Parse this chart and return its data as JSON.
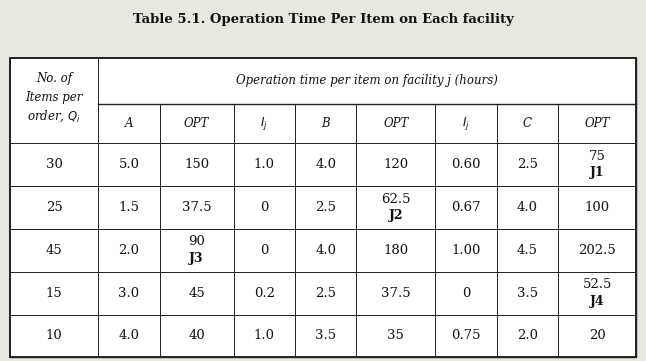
{
  "title": "Table 5.1. Operation Time Per Item on Each facility",
  "col_header_top": "Operation time per item on facility j (hours)",
  "col_header_sub": [
    "A",
    "OPT",
    "I_j",
    "B",
    "OPT",
    "I_j",
    "C",
    "OPT"
  ],
  "rows": [
    {
      "q": "30",
      "vals": [
        "5.0",
        "150",
        "1.0",
        "4.0",
        "120",
        "0.60",
        "2.5",
        "75"
      ],
      "bold_val": "J1",
      "bold_col": 7
    },
    {
      "q": "25",
      "vals": [
        "1.5",
        "37.5",
        "0",
        "2.5",
        "62.5",
        "0.67",
        "4.0",
        "100"
      ],
      "bold_val": "J2",
      "bold_col": 4
    },
    {
      "q": "45",
      "vals": [
        "2.0",
        "90",
        "0",
        "4.0",
        "180",
        "1.00",
        "4.5",
        "202.5"
      ],
      "bold_val": "J3",
      "bold_col": 1
    },
    {
      "q": "15",
      "vals": [
        "3.0",
        "45",
        "0.2",
        "2.5",
        "37.5",
        "0",
        "3.5",
        "52.5"
      ],
      "bold_val": "J4",
      "bold_col": 7
    },
    {
      "q": "10",
      "vals": [
        "4.0",
        "40",
        "1.0",
        "3.5",
        "35",
        "0.75",
        "2.0",
        "20"
      ],
      "bold_val": null,
      "bold_col": null
    }
  ],
  "bg_color": "#e8e8e0",
  "line_color": "#222222",
  "text_color": "#111111"
}
